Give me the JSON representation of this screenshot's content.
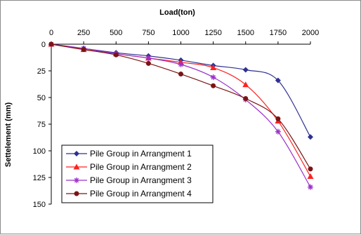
{
  "chart_data": {
    "type": "line",
    "xlabel": "Load(ton)",
    "ylabel": "Settelement (mm)",
    "x_axis_position": "top",
    "y_axis_inverted": true,
    "xlim": [
      0,
      2000
    ],
    "ylim": [
      0,
      150
    ],
    "xticks": [
      0,
      250,
      500,
      750,
      1000,
      1250,
      1500,
      1750,
      2000
    ],
    "yticks": [
      0,
      25,
      50,
      75,
      100,
      125,
      150
    ],
    "grid": false,
    "legend": "bottom-left",
    "x": [
      0,
      250,
      500,
      750,
      1000,
      1250,
      1500,
      1750,
      2000
    ],
    "series": [
      {
        "name": "Pile Group in  Arrangment 1",
        "color": "#2e3192",
        "marker": "diamond",
        "values": [
          0,
          4,
          8,
          11,
          15,
          20,
          24,
          34,
          87
        ]
      },
      {
        "name": "Pile Group in  Arrangment 2",
        "color": "#ff2020",
        "marker": "triangle",
        "values": [
          0,
          5,
          9,
          13,
          17,
          22,
          38,
          72,
          124
        ]
      },
      {
        "name": "Pile Group in  Arrangment 3",
        "color": "#9b30c8",
        "marker": "star",
        "values": [
          0,
          4,
          9,
          13,
          19,
          31,
          52,
          82,
          134
        ]
      },
      {
        "name": "Pile Group in  Arrangment 4",
        "color": "#7b1414",
        "marker": "circle",
        "values": [
          0,
          5,
          10,
          18,
          28,
          39,
          51,
          70,
          117
        ]
      }
    ]
  }
}
